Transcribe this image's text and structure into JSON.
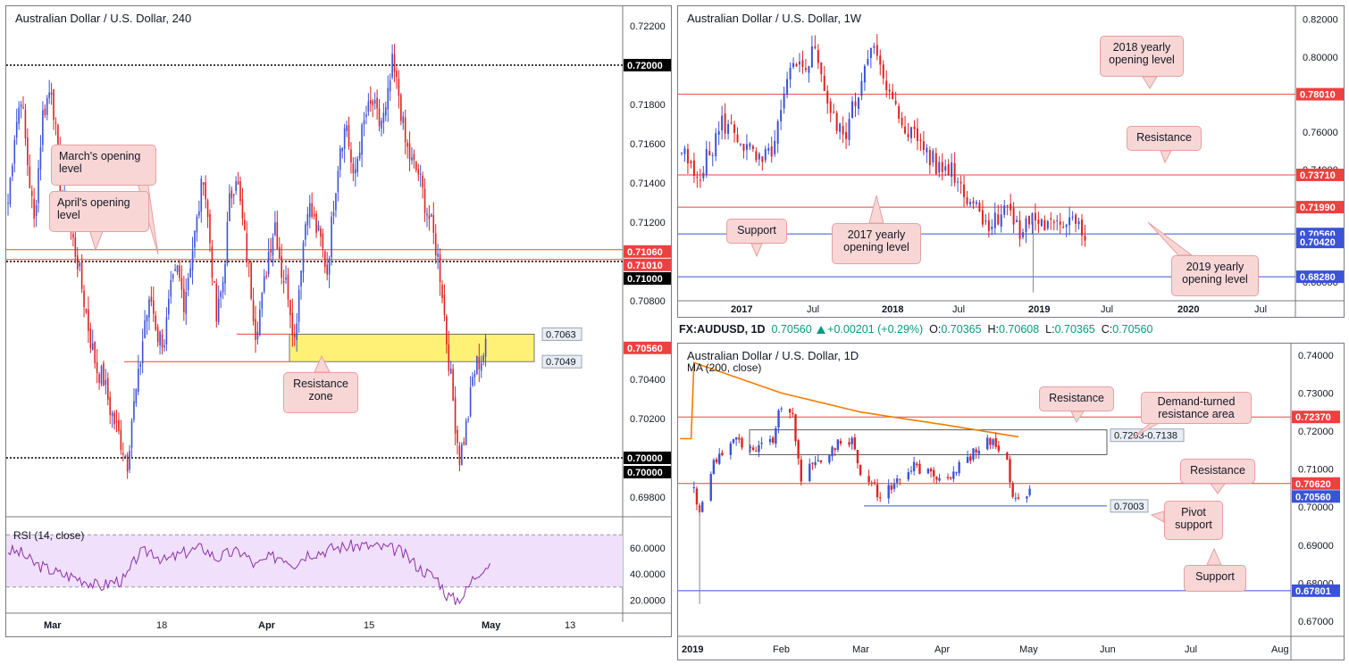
{
  "colors": {
    "bull": "#3b53d6",
    "bear": "#e02222",
    "resistance_line": "#ef4040",
    "support_line": "#3b53d6",
    "ma": "#f57c00",
    "rsi": "#8b2fa8",
    "rsi_band": "#f0e0fb",
    "zone": "#fff176",
    "note_bg": "#f8d6d6",
    "axis_text": "#131722"
  },
  "panels": {
    "h4": {
      "title": "Australian Dollar / U.S. Dollar, 240",
      "y_ticks": [
        "0.72200",
        "0.71800",
        "0.71600",
        "0.71400",
        "0.71200",
        "0.70800",
        "0.70400",
        "0.70200",
        "0.69800"
      ],
      "x_ticks": [
        "Mar",
        "18",
        "Apr",
        "15",
        "May",
        "13"
      ],
      "x_ticks_bold": [
        "Mar",
        "Apr",
        "May"
      ],
      "price_tags": [
        {
          "text": "0.72000",
          "bg": "#000000",
          "fg": "#ffffff"
        },
        {
          "text": "0.71060",
          "bg": "#ef4040",
          "fg": "#ffffff"
        },
        {
          "text": "0.71010",
          "bg": "#ef4040",
          "fg": "#ffffff"
        },
        {
          "text": "0.71000",
          "bg": "#000000",
          "fg": "#ffffff"
        },
        {
          "text": "0.70560",
          "bg": "#ef4040",
          "fg": "#ffffff"
        },
        {
          "text": "0.70000",
          "bg": "#000000",
          "fg": "#ffffff"
        },
        {
          "text": "0.70000",
          "bg": "#000000",
          "fg": "#ffffff"
        }
      ],
      "zone_labels": [
        "0.7063",
        "0.7049"
      ],
      "notes": [
        "March's opening level",
        "April's opening level",
        "Resistance zone"
      ],
      "rsi": {
        "title": "RSI (14, close)",
        "y_ticks": [
          "60.0000",
          "40.0000",
          "20.0000"
        ]
      }
    },
    "weekly": {
      "title": "Australian Dollar / U.S. Dollar, 1W",
      "y_ticks": [
        "0.82000",
        "0.80000",
        "0.76000",
        "0.74000",
        "0.70000",
        "0.68000"
      ],
      "x_ticks": [
        "2017",
        "Jul",
        "2018",
        "Jul",
        "2019",
        "Jul",
        "2020",
        "Jul"
      ],
      "x_ticks_bold": [
        "2017",
        "2018",
        "2019",
        "2020"
      ],
      "price_tags": [
        {
          "text": "0.78010",
          "bg": "#ef4040",
          "fg": "#ffffff"
        },
        {
          "text": "0.73710",
          "bg": "#ef4040",
          "fg": "#ffffff"
        },
        {
          "text": "0.71990",
          "bg": "#ef4040",
          "fg": "#ffffff"
        },
        {
          "text": "0.70560",
          "bg": "#3b53d6",
          "fg": "#ffffff"
        },
        {
          "text": "0.70420",
          "bg": "#3b53d6",
          "fg": "#ffffff"
        },
        {
          "text": "0.68280",
          "bg": "#3b53d6",
          "fg": "#ffffff"
        }
      ],
      "notes": [
        "2018 yearly opening level",
        "Resistance",
        "Support",
        "2017 yearly opening level",
        "2019 yearly opening level"
      ]
    },
    "daily": {
      "info": {
        "symbol": "FX:AUDUSD, 1D",
        "last": "0.70560",
        "change": "+0.00201 (+0.29%)",
        "o_label": "O:",
        "o": "0.70365",
        "h_label": "H:",
        "h": "0.70608",
        "l_label": "L:",
        "l": "0.70365",
        "c_label": "C:",
        "c": "0.70560"
      },
      "title": "Australian Dollar / U.S. Dollar, 1D",
      "ma_label": "MA (200, close)",
      "y_ticks": [
        "0.74000",
        "0.73000",
        "0.72000",
        "0.71000",
        "0.70000",
        "0.69000",
        "0.68000",
        "0.67000"
      ],
      "x_ticks": [
        "2019",
        "Feb",
        "Mar",
        "Apr",
        "May",
        "Jun",
        "Jul",
        "Aug"
      ],
      "x_ticks_bold": [
        "2019"
      ],
      "price_tags": [
        {
          "text": "0.72370",
          "bg": "#ef4040",
          "fg": "#ffffff"
        },
        {
          "text": "0.70620",
          "bg": "#ef4040",
          "fg": "#ffffff"
        },
        {
          "text": "0.70560",
          "bg": "#3b53d6",
          "fg": "#ffffff"
        },
        {
          "text": "0.67801",
          "bg": "#3b53d6",
          "fg": "#ffffff"
        }
      ],
      "box_labels": [
        "0.7203-0.7138",
        "0.7003"
      ],
      "notes": [
        "Resistance",
        "Demand-turned resistance area",
        "Resistance",
        "Pivot support",
        "Support"
      ]
    }
  },
  "chart_data": [
    {
      "type": "candlestick",
      "title": "Australian Dollar / U.S. Dollar, 240",
      "ylim": [
        0.697,
        0.723
      ],
      "horizontal_levels": [
        0.72,
        0.7106,
        0.7101,
        0.71,
        0.7056,
        0.7
      ],
      "zone": [
        0.7049,
        0.7063
      ],
      "path_close": [
        [
          0,
          0.713
        ],
        [
          3,
          0.7165
        ],
        [
          6,
          0.7185
        ],
        [
          9,
          0.715
        ],
        [
          12,
          0.712
        ],
        [
          16,
          0.7175
        ],
        [
          20,
          0.719
        ],
        [
          24,
          0.714
        ],
        [
          28,
          0.712
        ],
        [
          32,
          0.71
        ],
        [
          35,
          0.708
        ],
        [
          38,
          0.706
        ],
        [
          41,
          0.7045
        ],
        [
          44,
          0.704
        ],
        [
          47,
          0.7025
        ],
        [
          50,
          0.7015
        ],
        [
          53,
          0.7005
        ],
        [
          55,
          0.6998
        ],
        [
          57,
          0.702
        ],
        [
          60,
          0.704
        ],
        [
          63,
          0.707
        ],
        [
          66,
          0.708
        ],
        [
          69,
          0.7062
        ],
        [
          72,
          0.706
        ],
        [
          75,
          0.7085
        ],
        [
          78,
          0.7095
        ],
        [
          81,
          0.708
        ],
        [
          84,
          0.71
        ],
        [
          87,
          0.712
        ],
        [
          90,
          0.7145
        ],
        [
          93,
          0.711
        ],
        [
          96,
          0.707
        ],
        [
          99,
          0.709
        ],
        [
          102,
          0.713
        ],
        [
          105,
          0.7145
        ],
        [
          108,
          0.712
        ],
        [
          111,
          0.7095
        ],
        [
          114,
          0.7065
        ],
        [
          117,
          0.708
        ],
        [
          120,
          0.7105
        ],
        [
          123,
          0.712
        ],
        [
          126,
          0.7095
        ],
        [
          129,
          0.7085
        ],
        [
          132,
          0.706
        ],
        [
          135,
          0.71
        ],
        [
          138,
          0.713
        ],
        [
          141,
          0.712
        ],
        [
          144,
          0.711
        ],
        [
          147,
          0.7095
        ],
        [
          150,
          0.713
        ],
        [
          153,
          0.716
        ],
        [
          156,
          0.717
        ],
        [
          159,
          0.714
        ],
        [
          162,
          0.716
        ],
        [
          165,
          0.7175
        ],
        [
          168,
          0.718
        ],
        [
          171,
          0.717
        ],
        [
          174,
          0.7175
        ],
        [
          177,
          0.72
        ],
        [
          180,
          0.7185
        ],
        [
          183,
          0.716
        ],
        [
          186,
          0.715
        ],
        [
          189,
          0.7145
        ],
        [
          192,
          0.713
        ],
        [
          195,
          0.7118
        ],
        [
          198,
          0.7102
        ],
        [
          200,
          0.7085
        ],
        [
          202,
          0.706
        ],
        [
          204,
          0.704
        ],
        [
          206,
          0.7018
        ],
        [
          208,
          0.7
        ],
        [
          210,
          0.701
        ],
        [
          212,
          0.7022
        ],
        [
          214,
          0.704
        ],
        [
          216,
          0.7048
        ],
        [
          218,
          0.705
        ],
        [
          220,
          0.7056
        ]
      ],
      "rsi_path": [
        [
          0,
          58
        ],
        [
          6,
          56
        ],
        [
          12,
          48
        ],
        [
          18,
          44
        ],
        [
          24,
          40
        ],
        [
          30,
          38
        ],
        [
          36,
          35
        ],
        [
          42,
          30
        ],
        [
          48,
          34
        ],
        [
          54,
          36
        ],
        [
          60,
          55
        ],
        [
          66,
          58
        ],
        [
          72,
          50
        ],
        [
          78,
          54
        ],
        [
          84,
          58
        ],
        [
          90,
          60
        ],
        [
          96,
          52
        ],
        [
          102,
          56
        ],
        [
          108,
          57
        ],
        [
          114,
          46
        ],
        [
          120,
          52
        ],
        [
          126,
          54
        ],
        [
          132,
          48
        ],
        [
          138,
          56
        ],
        [
          144,
          57
        ],
        [
          150,
          60
        ],
        [
          156,
          61
        ],
        [
          162,
          62
        ],
        [
          168,
          61
        ],
        [
          174,
          60
        ],
        [
          180,
          58
        ],
        [
          186,
          50
        ],
        [
          190,
          44
        ],
        [
          194,
          40
        ],
        [
          198,
          36
        ],
        [
          202,
          24
        ],
        [
          206,
          20
        ],
        [
          210,
          24
        ],
        [
          214,
          36
        ],
        [
          218,
          44
        ],
        [
          222,
          48
        ]
      ]
    },
    {
      "type": "candlestick",
      "title": "Australian Dollar / U.S. Dollar, 1W",
      "ylim": [
        0.67,
        0.827
      ],
      "horizontal_levels": [
        0.7801,
        0.7371,
        0.7199,
        0.7056,
        0.6828
      ],
      "path_close": [
        [
          "2016-11",
          0.75
        ],
        [
          "2016-12",
          0.735
        ],
        [
          "2017-01",
          0.747
        ],
        [
          "2017-02",
          0.765
        ],
        [
          "2017-03",
          0.76
        ],
        [
          "2017-04",
          0.75
        ],
        [
          "2017-05",
          0.742
        ],
        [
          "2017-06",
          0.755
        ],
        [
          "2017-07",
          0.79
        ],
        [
          "2017-08",
          0.795
        ],
        [
          "2017-09",
          0.805
        ],
        [
          "2017-10",
          0.77
        ],
        [
          "2017-11",
          0.757
        ],
        [
          "2017-12",
          0.778
        ],
        [
          "2018-01",
          0.81
        ],
        [
          "2018-02",
          0.785
        ],
        [
          "2018-03",
          0.77
        ],
        [
          "2018-04",
          0.76
        ],
        [
          "2018-05",
          0.753
        ],
        [
          "2018-06",
          0.74
        ],
        [
          "2018-07",
          0.742
        ],
        [
          "2018-08",
          0.728
        ],
        [
          "2018-09",
          0.72
        ],
        [
          "2018-10",
          0.709
        ],
        [
          "2018-11",
          0.723
        ],
        [
          "2018-12",
          0.705
        ],
        [
          "2019-01",
          0.715
        ],
        [
          "2019-02",
          0.71
        ],
        [
          "2019-03",
          0.708
        ],
        [
          "2019-04",
          0.718
        ],
        [
          "2019-05",
          0.7056
        ]
      ]
    },
    {
      "type": "candlestick",
      "title": "Australian Dollar / U.S. Dollar, 1D",
      "ylim": [
        0.666,
        0.743
      ],
      "horizontal_levels": [
        0.7237,
        0.7062,
        0.7056,
        0.67801,
        0.7003
      ],
      "zone": [
        0.7138,
        0.7203
      ],
      "ma_label": "MA (200, close)",
      "path_close": [
        [
          "2019-01-01",
          0.705
        ],
        [
          "2019-01-03",
          0.698
        ],
        [
          "2019-01-08",
          0.712
        ],
        [
          "2019-01-15",
          0.718
        ],
        [
          "2019-01-22",
          0.714
        ],
        [
          "2019-01-29",
          0.718
        ],
        [
          "2019-02-01",
          0.727
        ],
        [
          "2019-02-05",
          0.723
        ],
        [
          "2019-02-08",
          0.708
        ],
        [
          "2019-02-14",
          0.712
        ],
        [
          "2019-02-20",
          0.716
        ],
        [
          "2019-02-26",
          0.718
        ],
        [
          "2019-03-01",
          0.709
        ],
        [
          "2019-03-06",
          0.706
        ],
        [
          "2019-03-08",
          0.702
        ],
        [
          "2019-03-14",
          0.707
        ],
        [
          "2019-03-20",
          0.711
        ],
        [
          "2019-03-27",
          0.708
        ],
        [
          "2019-04-02",
          0.709
        ],
        [
          "2019-04-10",
          0.714
        ],
        [
          "2019-04-17",
          0.718
        ],
        [
          "2019-04-22",
          0.712
        ],
        [
          "2019-04-24",
          0.704
        ],
        [
          "2019-04-26",
          0.701
        ],
        [
          "2019-04-29",
          0.704
        ],
        [
          "2019-04-30",
          0.7056
        ]
      ],
      "ma_path": [
        [
          "2019-01-01",
          0.738
        ],
        [
          "2019-02-01",
          0.73
        ],
        [
          "2019-03-01",
          0.725
        ],
        [
          "2019-04-01",
          0.7215
        ],
        [
          "2019-04-30",
          0.718
        ]
      ]
    }
  ]
}
